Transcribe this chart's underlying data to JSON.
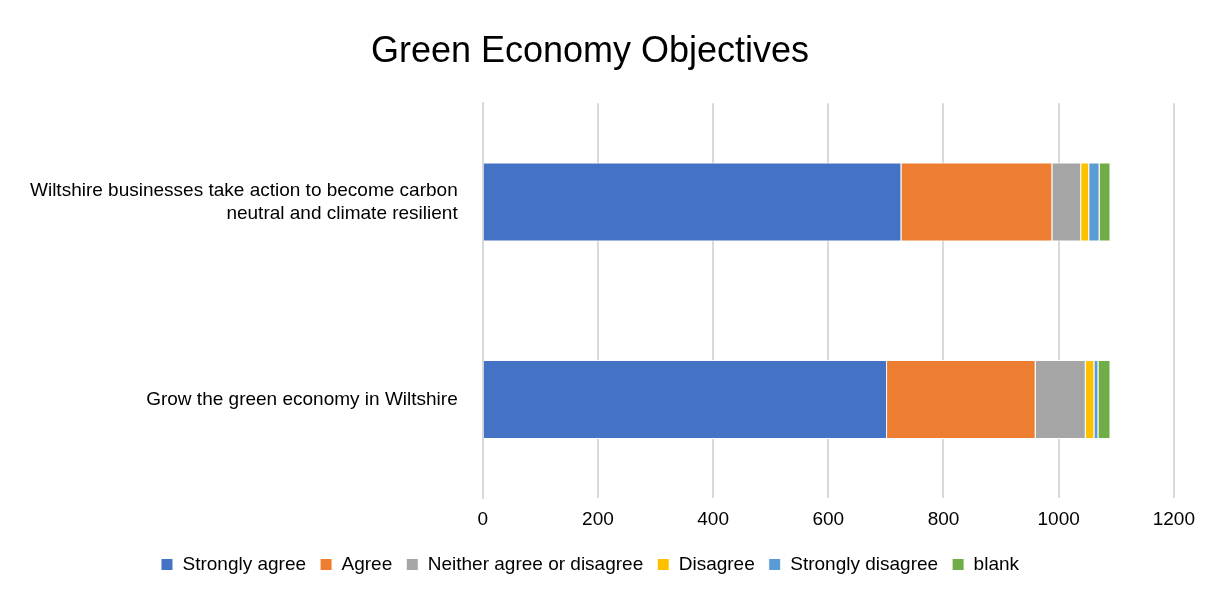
{
  "chart_data": {
    "type": "bar",
    "orientation": "horizontal",
    "stacked": true,
    "title": "Green Economy Objectives",
    "categories": [
      "Wiltshire businesses take action to become carbon neutral and climate resilient",
      "Grow the green economy in Wiltshire"
    ],
    "series": [
      {
        "name": "Strongly agree",
        "color": "#4472c4",
        "values": [
          727,
          702
        ]
      },
      {
        "name": "Agree",
        "color": "#ed7d31",
        "values": [
          262,
          258
        ]
      },
      {
        "name": "Neither agree or disagree",
        "color": "#a5a5a5",
        "values": [
          50,
          87
        ]
      },
      {
        "name": "Disagree",
        "color": "#ffc000",
        "values": [
          14,
          15
        ]
      },
      {
        "name": "Strongly disagree",
        "color": "#5b9bd5",
        "values": [
          18,
          7
        ]
      },
      {
        "name": "blank",
        "color": "#70ad47",
        "values": [
          19,
          21
        ]
      }
    ],
    "xlim": [
      0,
      1200
    ],
    "xticks": [
      0,
      200,
      400,
      600,
      800,
      1000,
      1200
    ],
    "grid": "x",
    "legend": "bottom"
  }
}
